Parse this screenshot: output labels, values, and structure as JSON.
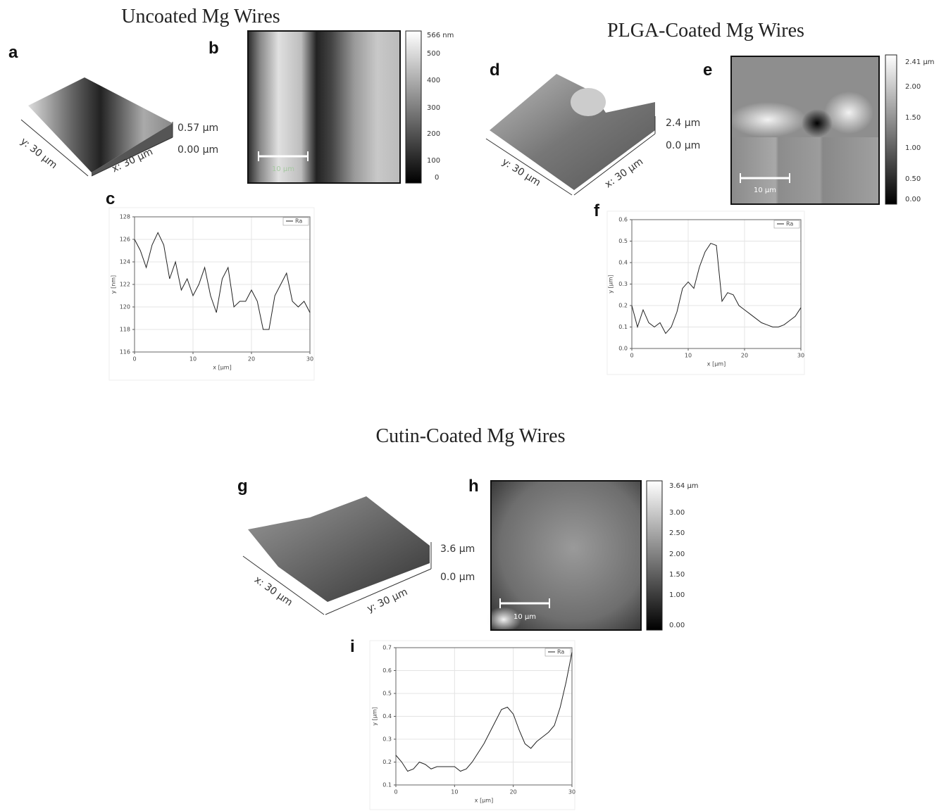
{
  "titles": [
    "Uncoated Mg Wires",
    "PLGA-Coated Mg Wires",
    "Cutin-Coated Mg Wires"
  ],
  "panel_labels": [
    "a",
    "b",
    "c",
    "d",
    "e",
    "f",
    "g",
    "h",
    "i"
  ],
  "surface_plots": [
    {
      "z_max": "0.57 µm",
      "z_min": "0.00 µm",
      "y_label": "y: 30 µm",
      "x_label": "x: 30 µm"
    },
    {
      "z_max": "2.4 µm",
      "z_min": "0.0 µm",
      "y_label": "y: 30 µm",
      "x_label": "x: 30 µm"
    },
    {
      "z_max": "3.6 µm",
      "z_min": "0.0 µm",
      "x_label": "x: 30 µm",
      "y_label": "y: 30 µm"
    }
  ],
  "images": [
    {
      "scale_bar": "10 µm",
      "colorbar": [
        "566 nm",
        "500",
        "400",
        "300",
        "200",
        "100",
        "0"
      ]
    },
    {
      "scale_bar": "10 µm",
      "colorbar": [
        "2.41 µm",
        "2.00",
        "1.50",
        "1.00",
        "0.50",
        "0.00"
      ]
    },
    {
      "scale_bar": "10 µm",
      "colorbar": [
        "3.64 µm",
        "3.00",
        "2.50",
        "2.00",
        "1.50",
        "1.00",
        "0.00"
      ]
    }
  ],
  "chart_data": [
    {
      "type": "line",
      "xlabel": "x [µm]",
      "ylabel": "y [nm]",
      "x": [
        0,
        1,
        2,
        3,
        4,
        5,
        6,
        7,
        8,
        9,
        10,
        11,
        12,
        13,
        14,
        15,
        16,
        17,
        18,
        19,
        20,
        21,
        22,
        23,
        24,
        25,
        26,
        27,
        28,
        29,
        30
      ],
      "series": [
        {
          "name": "Ra",
          "color": "#222222",
          "values": [
            126,
            125,
            123.5,
            125.5,
            126.6,
            125.5,
            122.5,
            124,
            121.5,
            122.5,
            121,
            122,
            123.5,
            121,
            119.5,
            122.5,
            123.5,
            120,
            120.5,
            120.5,
            121.5,
            120.5,
            118,
            118,
            121,
            122,
            123,
            120.5,
            120,
            120.5,
            119.5
          ]
        }
      ],
      "xlim": [
        0,
        30
      ],
      "xticks": [
        0,
        10,
        20,
        30
      ],
      "ylim": [
        116,
        128
      ],
      "yticks": [
        116,
        118,
        120,
        122,
        124,
        126,
        128
      ],
      "grid": true
    },
    {
      "type": "line",
      "xlabel": "x [µm]",
      "ylabel": "y [µm]",
      "x": [
        0,
        1,
        2,
        3,
        4,
        5,
        6,
        7,
        8,
        9,
        10,
        11,
        12,
        13,
        14,
        15,
        16,
        17,
        18,
        19,
        20,
        21,
        22,
        23,
        24,
        25,
        26,
        27,
        28,
        29,
        30
      ],
      "series": [
        {
          "name": "Ra",
          "color": "#222222",
          "values": [
            0.2,
            0.1,
            0.18,
            0.12,
            0.1,
            0.12,
            0.07,
            0.1,
            0.17,
            0.28,
            0.31,
            0.28,
            0.38,
            0.45,
            0.49,
            0.48,
            0.22,
            0.26,
            0.25,
            0.2,
            0.18,
            0.16,
            0.14,
            0.12,
            0.11,
            0.1,
            0.1,
            0.11,
            0.13,
            0.15,
            0.19
          ]
        }
      ],
      "xlim": [
        0,
        30
      ],
      "xticks": [
        0,
        10,
        20,
        30
      ],
      "ylim": [
        0,
        0.6
      ],
      "yticks": [
        {
          "value": 0,
          "label": "0.0"
        },
        0.1,
        0.2,
        0.3,
        0.4,
        0.5,
        0.6
      ],
      "grid": true
    },
    {
      "type": "line",
      "xlabel": "x [µm]",
      "ylabel": "y [µm]",
      "x": [
        0,
        1,
        2,
        3,
        4,
        5,
        6,
        7,
        8,
        9,
        10,
        11,
        12,
        13,
        14,
        15,
        16,
        17,
        18,
        19,
        20,
        21,
        22,
        23,
        24,
        25,
        26,
        27,
        28,
        29,
        30
      ],
      "series": [
        {
          "name": "Ra",
          "color": "#222222",
          "values": [
            0.23,
            0.2,
            0.16,
            0.17,
            0.2,
            0.19,
            0.17,
            0.18,
            0.18,
            0.18,
            0.18,
            0.16,
            0.17,
            0.2,
            0.24,
            0.28,
            0.33,
            0.38,
            0.43,
            0.44,
            0.41,
            0.34,
            0.28,
            0.26,
            0.29,
            0.31,
            0.33,
            0.36,
            0.44,
            0.55,
            0.68
          ]
        }
      ],
      "xlim": [
        0,
        30
      ],
      "xticks": [
        0,
        10,
        20,
        30
      ],
      "ylim": [
        0.1,
        0.7
      ],
      "yticks": [
        0.1,
        0.2,
        0.3,
        0.4,
        0.5,
        0.6,
        0.7
      ],
      "grid": true
    }
  ]
}
